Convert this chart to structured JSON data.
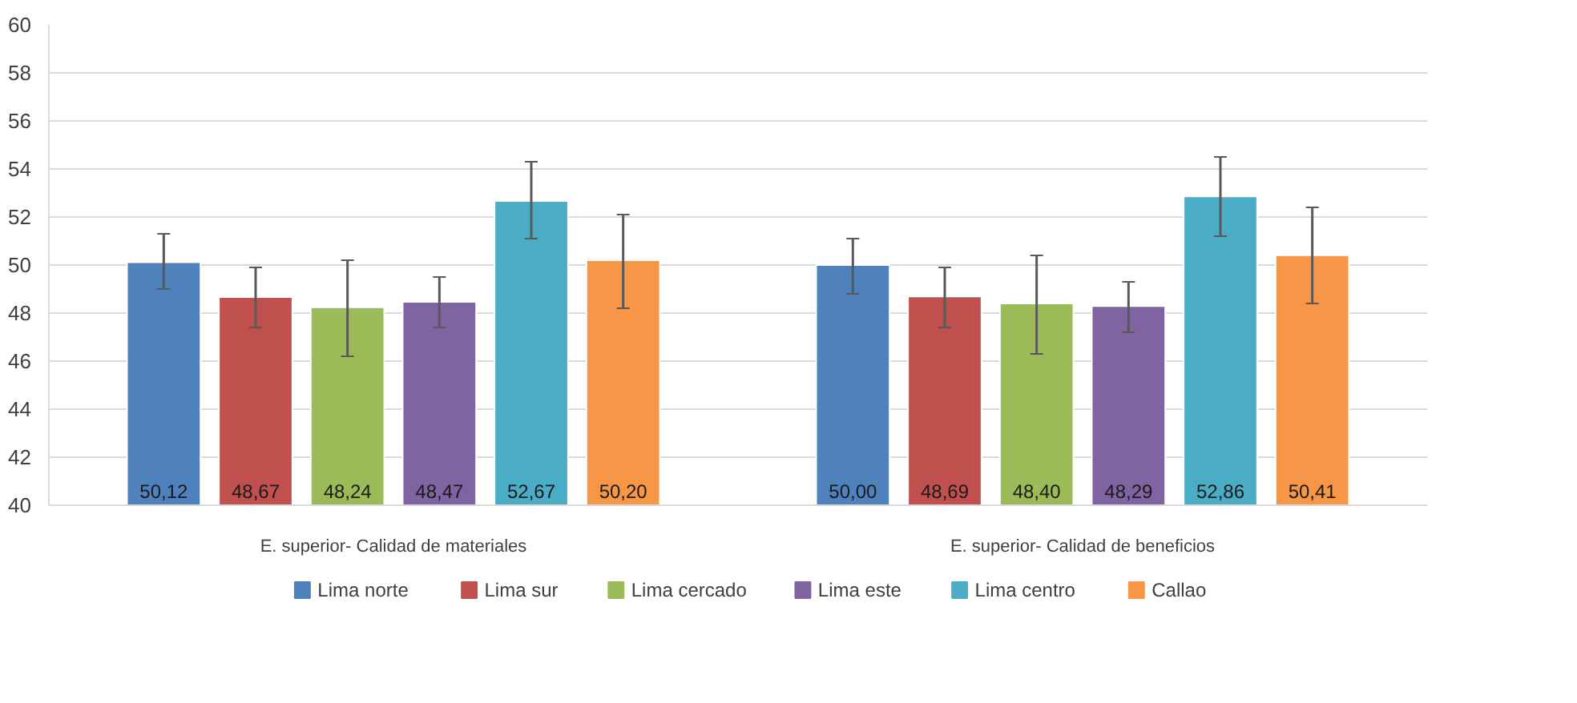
{
  "chart_data": {
    "type": "bar",
    "categories": [
      "E. superior- Calidad de materiales",
      "E. superior- Calidad de beneficios"
    ],
    "series": [
      {
        "name": "Lima norte",
        "color": "#4f81bd",
        "values": [
          50.12,
          50.0
        ],
        "errors": [
          [
            49.0,
            51.3
          ],
          [
            48.8,
            51.1
          ]
        ],
        "value_labels": [
          "50,12",
          "50,00"
        ]
      },
      {
        "name": "Lima sur",
        "color": "#c0504d",
        "values": [
          48.67,
          48.69
        ],
        "errors": [
          [
            47.4,
            49.9
          ],
          [
            47.4,
            49.9
          ]
        ],
        "value_labels": [
          "48,67",
          "48,69"
        ]
      },
      {
        "name": "Lima cercado",
        "color": "#9bbb59",
        "values": [
          48.24,
          48.4
        ],
        "errors": [
          [
            46.2,
            50.2
          ],
          [
            46.3,
            50.4
          ]
        ],
        "value_labels": [
          "48,24",
          "48,40"
        ]
      },
      {
        "name": "Lima este",
        "color": "#8064a2",
        "values": [
          48.47,
          48.29
        ],
        "errors": [
          [
            47.4,
            49.5
          ],
          [
            47.2,
            49.3
          ]
        ],
        "value_labels": [
          "48,47",
          "48,29"
        ]
      },
      {
        "name": "Lima centro",
        "color": "#4bacc6",
        "values": [
          52.67,
          52.86
        ],
        "errors": [
          [
            51.1,
            54.3
          ],
          [
            51.2,
            54.5
          ]
        ],
        "value_labels": [
          "52,67",
          "52,86"
        ]
      },
      {
        "name": "Callao",
        "color": "#f79646",
        "values": [
          50.2,
          50.41
        ],
        "errors": [
          [
            48.2,
            52.1
          ],
          [
            48.4,
            52.4
          ]
        ],
        "value_labels": [
          "50,20",
          "50,41"
        ]
      }
    ],
    "ylim": [
      40,
      60
    ],
    "yticks": [
      40,
      42,
      44,
      46,
      48,
      50,
      52,
      54,
      56,
      58,
      60
    ],
    "grid": "y",
    "legend": "bottom"
  }
}
